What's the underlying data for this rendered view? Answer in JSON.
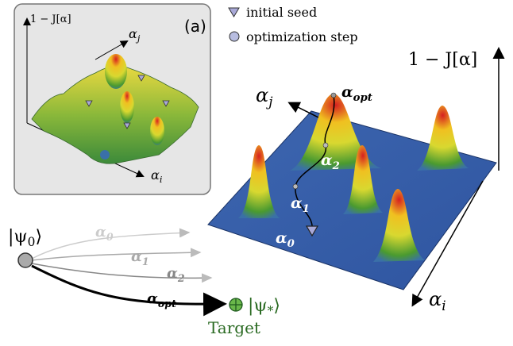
{
  "panel_label": "(a)",
  "legend": {
    "seed": "initial seed",
    "step": "optimization step"
  },
  "inset": {
    "z_axis": "1 − J[α]",
    "y_axis": {
      "symbol": "α",
      "sub": "j"
    },
    "x_axis": {
      "symbol": "α",
      "sub": "i"
    }
  },
  "main": {
    "z_axis": "1 − J[α]",
    "y_axis": {
      "symbol": "α",
      "sub": "j"
    },
    "x_axis": {
      "symbol": "α",
      "sub": "i"
    },
    "points": [
      {
        "symbol": "α",
        "sub": "opt"
      },
      {
        "symbol": "α",
        "sub": "2"
      },
      {
        "symbol": "α",
        "sub": "1"
      },
      {
        "symbol": "α",
        "sub": "0"
      }
    ]
  },
  "trajectories": [
    {
      "symbol": "α",
      "sub": "0"
    },
    {
      "symbol": "α",
      "sub": "1"
    },
    {
      "symbol": "α",
      "sub": "2"
    },
    {
      "symbol": "α",
      "sub": "opt"
    }
  ],
  "initial_state": {
    "open": "|ψ",
    "sub": "0",
    "close": "⟩"
  },
  "target_state": {
    "open": "|ψ",
    "sub": "*",
    "close": "⟩",
    "caption": "Target"
  }
}
